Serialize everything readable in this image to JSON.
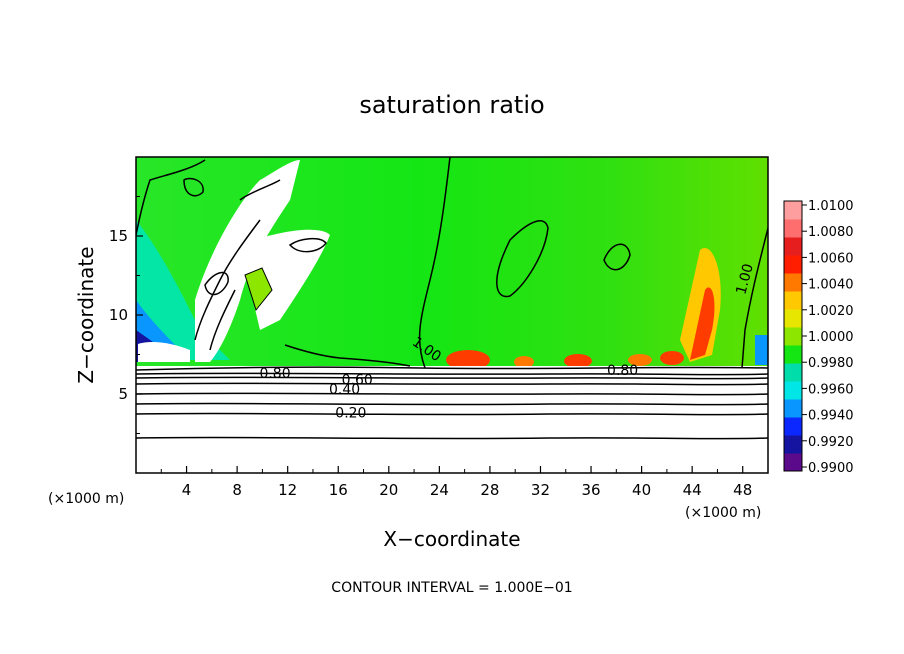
{
  "chart_data": {
    "type": "heatmap",
    "title": "saturation ratio",
    "xlabel": "X−coordinate",
    "ylabel": "Z−coordinate",
    "x_unit_left": "(×1000 m)",
    "x_unit_right": "(×1000 m)",
    "xlim": [
      0,
      50
    ],
    "ylim": [
      0,
      20
    ],
    "x_ticks": [
      4,
      8,
      12,
      16,
      20,
      24,
      28,
      32,
      36,
      40,
      44,
      48
    ],
    "y_ticks": [
      5,
      10,
      15
    ],
    "colorbar": {
      "range": [
        0.99,
        1.01
      ],
      "labels": [
        "1.0100",
        "1.0080",
        "1.0060",
        "1.0040",
        "1.0020",
        "1.0000",
        "0.9980",
        "0.9960",
        "0.9940",
        "0.9920",
        "0.9900"
      ],
      "colors": [
        "#5a0a8a",
        "#1414a0",
        "#0a28ff",
        "#0a96ff",
        "#00e6e6",
        "#00dcaa",
        "#14e614",
        "#8ce600",
        "#e6e600",
        "#ffc800",
        "#ff7800",
        "#ff1e00",
        "#e61e1e",
        "#ff6e6e",
        "#ff9e9e"
      ]
    },
    "contour_labels": [
      {
        "text": "1.00",
        "x": 22.8,
        "z": 7.6
      },
      {
        "text": "1.00",
        "x": 48.5,
        "z": 12.2
      },
      {
        "text": "0.80",
        "x": 11,
        "z": 6.0
      },
      {
        "text": "0.60",
        "x": 17.5,
        "z": 5.6
      },
      {
        "text": "0.40",
        "x": 16.5,
        "z": 5.0
      },
      {
        "text": "0.20",
        "x": 17,
        "z": 3.5
      },
      {
        "text": "0.80",
        "x": 38.5,
        "z": 6.2
      }
    ],
    "footer": "CONTOUR INTERVAL =  1.000E−01"
  }
}
